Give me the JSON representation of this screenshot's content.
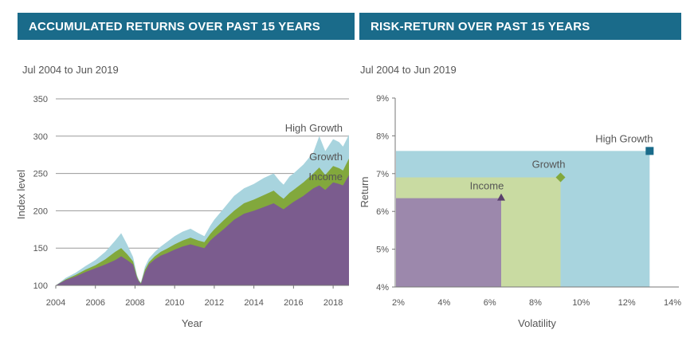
{
  "left_panel": {
    "banner": "ACCUMULATED RETURNS OVER PAST 15 YEARS",
    "subtitle": "Jul 2004 to Jun 2019"
  },
  "right_panel": {
    "banner": "RISK-RETURN OVER PAST 15 YEARS",
    "subtitle": "Jul 2004 to Jun 2019"
  },
  "colors": {
    "income": "#7b5c8e",
    "growth": "#82a83c",
    "high_growth": "#a8d4de",
    "high_growth_marker": "#1a6b8a",
    "banner": "#1a6b8a"
  },
  "chart_data": [
    {
      "type": "area",
      "title": "ACCUMULATED RETURNS OVER PAST 15 YEARS",
      "subtitle": "Jul 2004 to Jun 2019",
      "xlabel": "Year",
      "ylabel": "Index level",
      "xlim": [
        2004,
        2018.8
      ],
      "ylim": [
        100,
        350
      ],
      "xticks": [
        "2004",
        "2006",
        "2008",
        "2010",
        "2012",
        "2014",
        "2016",
        "2018"
      ],
      "yticks": [
        "100",
        "150",
        "200",
        "250",
        "300",
        "350"
      ],
      "grid": true,
      "x": [
        2004.0,
        2004.5,
        2005.0,
        2005.5,
        2006.0,
        2006.5,
        2007.0,
        2007.3,
        2007.6,
        2007.9,
        2008.1,
        2008.2,
        2008.3,
        2008.5,
        2008.7,
        2009.0,
        2009.3,
        2009.6,
        2010.0,
        2010.4,
        2010.8,
        2011.2,
        2011.5,
        2011.8,
        2012.0,
        2012.5,
        2013.0,
        2013.5,
        2014.0,
        2014.5,
        2015.0,
        2015.3,
        2015.5,
        2015.8,
        2016.0,
        2016.5,
        2017.0,
        2017.3,
        2017.6,
        2018.0,
        2018.3,
        2018.5,
        2018.8
      ],
      "series": [
        {
          "name": "Income",
          "label": "Income",
          "values": [
            100,
            107,
            112,
            118,
            123,
            128,
            134,
            139,
            134,
            128,
            110,
            105,
            102,
            118,
            128,
            135,
            140,
            143,
            148,
            152,
            155,
            152,
            150,
            160,
            165,
            176,
            188,
            196,
            200,
            205,
            210,
            205,
            202,
            208,
            212,
            220,
            230,
            234,
            228,
            238,
            236,
            234,
            248
          ]
        },
        {
          "name": "Growth",
          "label": "Growth",
          "values": [
            100,
            108,
            114,
            121,
            127,
            135,
            145,
            150,
            142,
            132,
            112,
            106,
            103,
            121,
            131,
            139,
            145,
            149,
            155,
            160,
            164,
            160,
            158,
            169,
            175,
            188,
            200,
            210,
            215,
            221,
            227,
            220,
            216,
            224,
            228,
            238,
            250,
            258,
            248,
            260,
            257,
            254,
            270
          ]
        },
        {
          "name": "High Growth",
          "label": "High Growth",
          "values": [
            100,
            110,
            117,
            126,
            134,
            145,
            160,
            170,
            155,
            138,
            114,
            107,
            104,
            125,
            136,
            145,
            152,
            158,
            166,
            172,
            176,
            170,
            166,
            180,
            188,
            204,
            220,
            230,
            236,
            244,
            250,
            240,
            235,
            246,
            250,
            262,
            278,
            300,
            280,
            296,
            292,
            286,
            302
          ]
        }
      ]
    },
    {
      "type": "scatter",
      "title": "RISK-RETURN OVER PAST 15 YEARS",
      "subtitle": "Jul 2004 to Jun 2019",
      "xlabel": "Volatility",
      "ylabel": "Return",
      "xlim": [
        2,
        14
      ],
      "ylim": [
        4,
        9
      ],
      "xticks": [
        "2%",
        "4%",
        "6%",
        "8%",
        "10%",
        "12%",
        "14%"
      ],
      "yticks": [
        "4%",
        "5%",
        "6%",
        "7%",
        "8%",
        "9%"
      ],
      "grid": false,
      "points": [
        {
          "name": "Income",
          "label": "Income",
          "volatility": 6.5,
          "return": 6.35,
          "marker": "triangle"
        },
        {
          "name": "Growth",
          "label": "Growth",
          "volatility": 9.1,
          "return": 6.9,
          "marker": "diamond"
        },
        {
          "name": "High Growth",
          "label": "High Growth",
          "volatility": 13.0,
          "return": 7.6,
          "marker": "square"
        }
      ]
    }
  ]
}
